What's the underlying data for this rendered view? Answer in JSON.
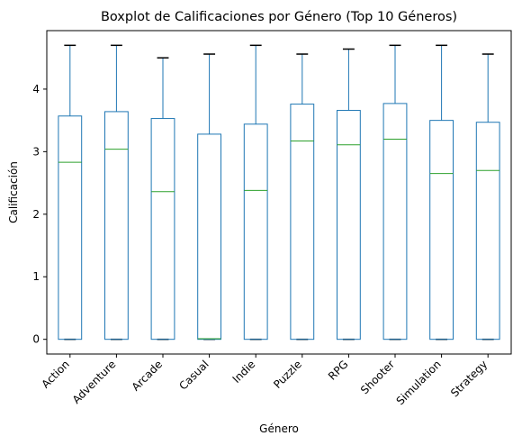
{
  "chart_data": {
    "type": "boxplot",
    "title": "Boxplot de Calificaciones por Género (Top 10 Géneros)",
    "xlabel": "Género",
    "ylabel": "Calificación",
    "categories": [
      "Action",
      "Adventure",
      "Arcade",
      "Casual",
      "Indie",
      "Puzzle",
      "RPG",
      "Shooter",
      "Simulation",
      "Strategy"
    ],
    "boxes": [
      {
        "whislo": 0,
        "q1": 0,
        "med": 2.83,
        "q3": 3.57,
        "whishi": 4.7
      },
      {
        "whislo": 0,
        "q1": 0,
        "med": 3.04,
        "q3": 3.64,
        "whishi": 4.7
      },
      {
        "whislo": 0,
        "q1": 0,
        "med": 2.36,
        "q3": 3.53,
        "whishi": 4.5
      },
      {
        "whislo": 0,
        "q1": 0,
        "med": 0.01,
        "q3": 3.28,
        "whishi": 4.56
      },
      {
        "whislo": 0,
        "q1": 0,
        "med": 2.38,
        "q3": 3.44,
        "whishi": 4.7
      },
      {
        "whislo": 0,
        "q1": 0,
        "med": 3.17,
        "q3": 3.76,
        "whishi": 4.56
      },
      {
        "whislo": 0,
        "q1": 0,
        "med": 3.11,
        "q3": 3.66,
        "whishi": 4.64
      },
      {
        "whislo": 0,
        "q1": 0,
        "med": 3.2,
        "q3": 3.77,
        "whishi": 4.7
      },
      {
        "whislo": 0,
        "q1": 0,
        "med": 2.65,
        "q3": 3.5,
        "whishi": 4.7
      },
      {
        "whislo": 0,
        "q1": 0,
        "med": 2.7,
        "q3": 3.47,
        "whishi": 4.56
      }
    ],
    "yticks": [
      0,
      1,
      2,
      3,
      4
    ],
    "ylim": [
      -0.235,
      4.935
    ],
    "grid": false,
    "legend": "none",
    "colors": {
      "box": "#1f77b4",
      "median": "#2ca02c",
      "whisker": "#1f77b4",
      "cap": "#000000"
    }
  }
}
